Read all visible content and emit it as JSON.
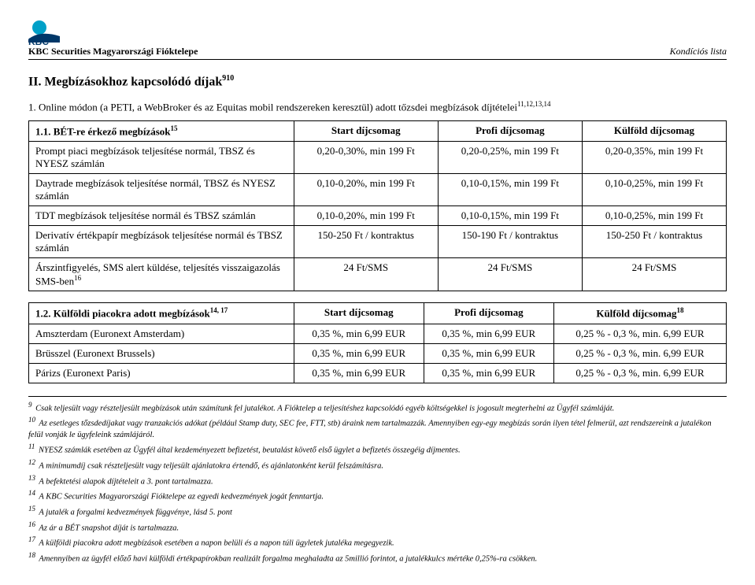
{
  "header": {
    "org": "KBC Securities Magyarországi Fióktelepe",
    "right": "Kondíciós lista"
  },
  "section": {
    "title": "II. Megbízásokhoz kapcsolódó díjak",
    "title_sup": "910"
  },
  "sub1": {
    "text": "1. Online módon (a PETI, a WebBroker és az Equitas mobil rendszereken keresztül) adott tőzsdei megbízások díjtételei",
    "sup": "11,12,13,14"
  },
  "table1": {
    "headRow": "1.1. BÉT-re érkező megbízások",
    "headRowSup": "15",
    "cols": [
      "Start díjcsomag",
      "Profi díjcsomag",
      "Külföld díjcsomag"
    ],
    "rows": [
      {
        "label": "Prompt piaci megbízások teljesítése normál, TBSZ és NYESZ számlán",
        "c": [
          "0,20-0,30%, min 199 Ft",
          "0,20-0,25%, min 199 Ft",
          "0,20-0,35%, min 199 Ft"
        ]
      },
      {
        "label": "Daytrade megbízások teljesítése normál, TBSZ és NYESZ számlán",
        "c": [
          "0,10-0,20%, min 199 Ft",
          "0,10-0,15%, min 199 Ft",
          "0,10-0,25%, min 199 Ft"
        ]
      },
      {
        "label": "TDT megbízások teljesítése normál és TBSZ számlán",
        "c": [
          "0,10-0,20%, min 199 Ft",
          "0,10-0,15%, min 199 Ft",
          "0,10-0,25%, min 199 Ft"
        ]
      },
      {
        "label": "Derivatív értékpapír megbízások teljesítése normál és TBSZ számlán",
        "c": [
          "150-250 Ft / kontraktus",
          "150-190 Ft / kontraktus",
          "150-250 Ft / kontraktus"
        ]
      },
      {
        "label": "Árszintfigyelés, SMS alert küldése, teljesítés visszaigazolás SMS-ben",
        "labelSup": "16",
        "c": [
          "24 Ft/SMS",
          "24 Ft/SMS",
          "24 Ft/SMS"
        ]
      }
    ]
  },
  "table2": {
    "headRow": "1.2. Külföldi piacokra adott megbízások",
    "headRowSup": "14, 17",
    "cols": [
      "Start díjcsomag",
      "Profi díjcsomag",
      "Külföld díjcsomag"
    ],
    "colSup": [
      "",
      "",
      "18"
    ],
    "rows": [
      {
        "label": "Amszterdam (Euronext Amsterdam)",
        "c": [
          "0,35 %, min 6,99 EUR",
          "0,35 %, min 6,99 EUR",
          "0,25 % - 0,3 %, min. 6,99 EUR"
        ]
      },
      {
        "label": "Brüsszel (Euronext Brussels)",
        "c": [
          "0,35 %, min 6,99 EUR",
          "0,35 %, min 6,99 EUR",
          "0,25 % - 0,3 %, min. 6,99 EUR"
        ]
      },
      {
        "label": "Párizs (Euronext Paris)",
        "c": [
          "0,35 %, min 6,99 EUR",
          "0,35 %, min 6,99 EUR",
          "0,25 % - 0,3 %, min. 6,99 EUR"
        ]
      }
    ]
  },
  "footnotes": [
    {
      "n": "9",
      "t": "Csak teljesült vagy részteljesült megbízások után számítunk fel jutalékot. A Fióktelep a teljesítéshez kapcsolódó egyéb költségekkel is jogosult megterhelni az Ügyfél számláját."
    },
    {
      "n": "10",
      "t": "Az esetleges tőzsdedíjakat vagy tranzakciós adókat (például Stamp duty, SEC fee, FTT, stb) áraink nem tartalmazzák. Amennyiben egy-egy megbízás során ilyen tétel felmerül, azt rendszereink a jutalékon felül vonják le ügyfeleink számlájáról."
    },
    {
      "n": "11",
      "t": "NYESZ számlák esetében az Ügyfél által kezdeményezett befizetést, beutalást követő első ügylet a befizetés összegéig díjmentes."
    },
    {
      "n": "12",
      "t": "A minimumdíj csak részteljesült vagy teljesült ajánlatokra értendő, és ajánlatonként kerül felszámításra."
    },
    {
      "n": "13",
      "t": "A befektetési alapok díjtételeit a 3. pont tartalmazza."
    },
    {
      "n": "14",
      "t": "A KBC Securities Magyarországi Fióktelepe az egyedi kedvezmények jogát fenntartja."
    },
    {
      "n": "15",
      "t": "A jutalék a forgalmi kedvezmények függvénye, lásd 5. pont"
    },
    {
      "n": "16",
      "t": "Az ár a BÉT snapshot díját is tartalmazza."
    },
    {
      "n": "17",
      "t": "A külföldi piacokra adott megbízások esetében a napon belüli és a napon túli ügyletek jutaléka megegyezik."
    },
    {
      "n": "18",
      "t": "Amennyiben az ügyfél előző havi külföldi értékpapírokban realizált forgalma meghaladta az 5millió forintot, a jutalékkulcs mértéke 0,25%-ra csökken."
    }
  ]
}
